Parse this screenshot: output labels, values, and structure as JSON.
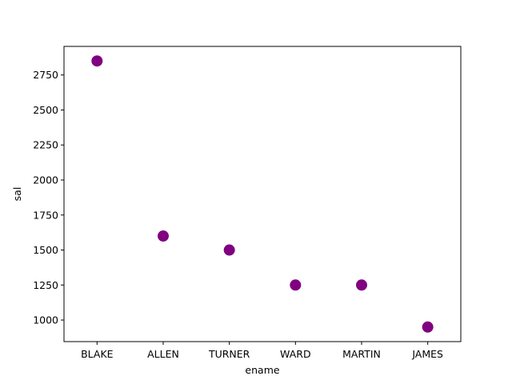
{
  "chart_data": {
    "type": "scatter",
    "xlabel": "ename",
    "ylabel": "sal",
    "categories": [
      "BLAKE",
      "ALLEN",
      "TURNER",
      "WARD",
      "MARTIN",
      "JAMES"
    ],
    "values": [
      2850,
      1600,
      1500,
      1250,
      1250,
      950
    ],
    "ylim": [
      846,
      2954
    ],
    "yticks": [
      1000,
      1250,
      1500,
      1750,
      2000,
      2250,
      2500,
      2750
    ],
    "grid": false,
    "marker_color": "#800080"
  }
}
